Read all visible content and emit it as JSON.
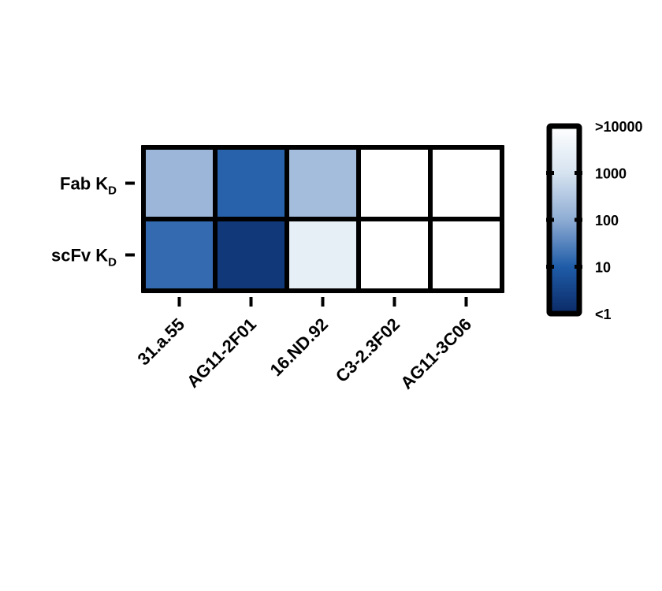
{
  "chart_data": {
    "type": "heatmap",
    "rows": [
      {
        "name": "Fab K",
        "sub": "D"
      },
      {
        "name": "scFv K",
        "sub": "D"
      }
    ],
    "columns": [
      "31.a.55",
      "AG11-2F01",
      "16.ND.92",
      "C3-2.3F02",
      "AG11-3C06"
    ],
    "values": [
      [
        150,
        12,
        200,
        10000,
        10000
      ],
      [
        15,
        2,
        2500,
        10000,
        10000
      ]
    ],
    "colorbar": {
      "scale": "log",
      "range": [
        1,
        10000
      ],
      "tick_values": [
        1,
        10,
        100,
        1000,
        10000
      ],
      "tick_labels": [
        "<1",
        "10",
        "100",
        "1000",
        ">10000"
      ],
      "colors": [
        "#0b2a66",
        "#1f5ca8",
        "#8eacd3",
        "#d6e3f0",
        "#ffffff"
      ]
    },
    "legend_position": "right"
  }
}
